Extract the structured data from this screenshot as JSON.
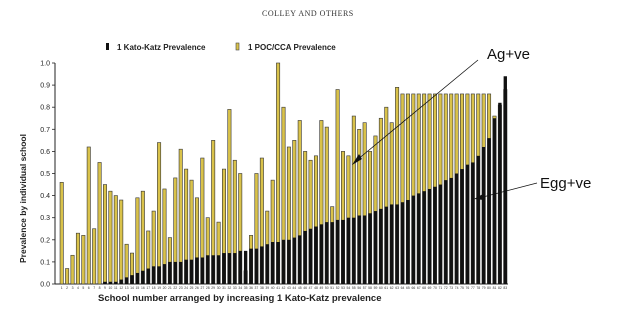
{
  "header": "COLLEY AND OTHERS",
  "chart_data": {
    "type": "bar",
    "ylabel": "Prevalence by individual school",
    "xlabel": "School number arranged by increasing 1 Kato-Katz prevalence",
    "ylim": [
      0,
      1.0
    ],
    "yticks": [
      "0.0",
      "0.1",
      "0.2",
      "0.3",
      "0.4",
      "0.5",
      "0.6",
      "0.7",
      "0.8",
      "0.9",
      "1.0"
    ],
    "legend_position": "top",
    "categories": [
      "1",
      "2",
      "3",
      "4",
      "5",
      "6",
      "7",
      "8",
      "9",
      "10",
      "11",
      "12",
      "13",
      "14",
      "15",
      "16",
      "17",
      "18",
      "19",
      "20",
      "21",
      "22",
      "23",
      "24",
      "25",
      "26",
      "27",
      "28",
      "29",
      "30",
      "31",
      "32",
      "33",
      "34",
      "35",
      "36",
      "37",
      "38",
      "39",
      "40",
      "41",
      "42",
      "43",
      "44",
      "45",
      "46",
      "47",
      "48",
      "49",
      "50",
      "51",
      "52",
      "53",
      "54",
      "55",
      "56",
      "57",
      "58",
      "59",
      "60",
      "61",
      "62",
      "63",
      "64",
      "65",
      "66",
      "67",
      "68",
      "69",
      "70",
      "71",
      "72",
      "73",
      "74",
      "75",
      "76",
      "77",
      "78",
      "79",
      "80",
      "81",
      "82",
      "83"
    ],
    "series": [
      {
        "name": "1 Kato-Katz Prevalence",
        "color": "#111111",
        "values": [
          0.0,
          0.0,
          0.0,
          0.0,
          0.0,
          0.0,
          0.0,
          0.0,
          0.01,
          0.01,
          0.01,
          0.02,
          0.03,
          0.04,
          0.05,
          0.06,
          0.07,
          0.08,
          0.08,
          0.09,
          0.1,
          0.1,
          0.1,
          0.11,
          0.11,
          0.12,
          0.12,
          0.13,
          0.13,
          0.13,
          0.14,
          0.14,
          0.14,
          0.15,
          0.15,
          0.16,
          0.16,
          0.17,
          0.18,
          0.19,
          0.19,
          0.2,
          0.2,
          0.21,
          0.22,
          0.24,
          0.25,
          0.26,
          0.27,
          0.28,
          0.28,
          0.29,
          0.29,
          0.3,
          0.3,
          0.31,
          0.31,
          0.32,
          0.33,
          0.34,
          0.35,
          0.36,
          0.36,
          0.37,
          0.38,
          0.4,
          0.41,
          0.42,
          0.43,
          0.44,
          0.45,
          0.47,
          0.48,
          0.5,
          0.52,
          0.54,
          0.55,
          0.58,
          0.62,
          0.66,
          0.75,
          0.82,
          0.94
        ]
      },
      {
        "name": "1 POC/CCA Prevalence",
        "color": "#d9c24a",
        "values": [
          0.46,
          0.07,
          0.13,
          0.23,
          0.22,
          0.62,
          0.25,
          0.55,
          0.45,
          0.42,
          0.4,
          0.38,
          0.18,
          0.14,
          0.39,
          0.42,
          0.24,
          0.33,
          0.64,
          0.43,
          0.21,
          0.48,
          0.61,
          0.52,
          0.47,
          0.39,
          0.57,
          0.3,
          0.65,
          0.28,
          0.52,
          0.79,
          0.56,
          0.5,
          0.06,
          0.22,
          0.5,
          0.57,
          0.33,
          0.47,
          1.0,
          0.8,
          0.62,
          0.65,
          0.74,
          0.6,
          0.56,
          0.58,
          0.74,
          0.71,
          0.35,
          0.88,
          0.6,
          0.58,
          0.76,
          0.7,
          0.73,
          0.6,
          0.67,
          0.75,
          0.8,
          0.73,
          0.89,
          0.86,
          0.86,
          0.86,
          0.86,
          0.86,
          0.86,
          0.86,
          0.86,
          0.86,
          0.86,
          0.86,
          0.86,
          0.86,
          0.86,
          0.86,
          0.86,
          0.86,
          0.76,
          0.81,
          0.88
        ]
      }
    ]
  },
  "annotations": {
    "ag_label": "Ag+ve",
    "egg_label": "Egg+ve"
  }
}
